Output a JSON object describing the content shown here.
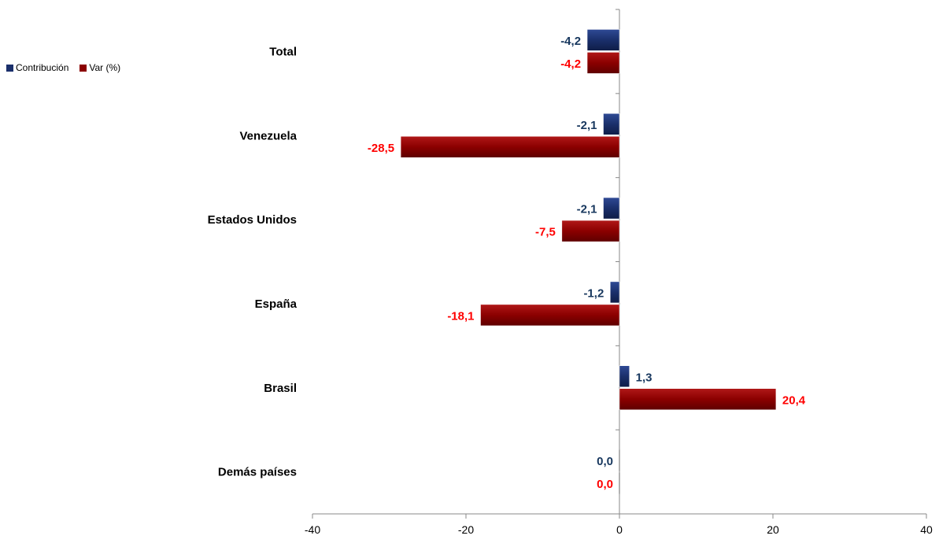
{
  "colors": {
    "contribution": "#1a2f6b",
    "contribution_light": "#3a56a8",
    "contribution_label": "#17375e",
    "variation": "#8b0000",
    "variation_light": "#c42424",
    "variation_label": "#ff0000",
    "axis": "#888888"
  },
  "chart_data": {
    "type": "bar",
    "orientation": "horizontal",
    "categories": [
      "Total",
      "Venezuela",
      "Estados Unidos",
      "España",
      "Brasil",
      "Demás países"
    ],
    "series": [
      {
        "name": "Contribución",
        "values": [
          -4.2,
          -2.1,
          -2.1,
          -1.2,
          1.3,
          0.0
        ],
        "labels": [
          "-4,2",
          "-2,1",
          "-2,1",
          "-1,2",
          "1,3",
          "0,0"
        ]
      },
      {
        "name": "Var (%)",
        "values": [
          -4.2,
          -28.5,
          -7.5,
          -18.1,
          20.4,
          0.0
        ],
        "labels": [
          "-4,2",
          "-28,5",
          "-7,5",
          "-18,1",
          "20,4",
          "0,0"
        ]
      }
    ],
    "xlim": [
      -40,
      40
    ],
    "xticks": [
      -40,
      -20,
      0,
      20,
      40
    ],
    "xtick_labels": [
      "-40",
      "-20",
      "0",
      "20",
      "40"
    ],
    "grid": false,
    "legend_position": "top-left"
  }
}
